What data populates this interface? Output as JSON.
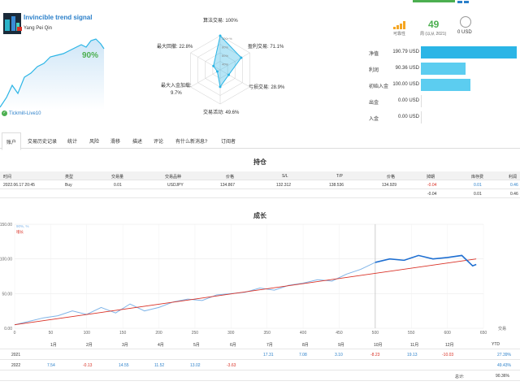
{
  "signal": {
    "title": "Invincible trend signal",
    "author": "Yang Pei Qin",
    "growth": "90%",
    "server": "Tickmill-Live10"
  },
  "radar": {
    "labels": [
      "算法交易: 100%",
      "盈利交易: 71.1%",
      "亏损交易: 28.9%",
      "交易活动: 49.6%",
      "最大入金加载:\n9.7%",
      "最大回撤: 22.8%"
    ],
    "values": [
      100,
      71.1,
      28.9,
      49.6,
      9.7,
      22.8
    ],
    "rings": [
      "100+%",
      "80%",
      "60%",
      "40%"
    ]
  },
  "stats": {
    "reliability_label": "可靠性",
    "weeks": "49",
    "weeks_label": "周 (以从 2021)",
    "currency_label": "0 USD"
  },
  "metrics": [
    {
      "label": "净值",
      "value": "190.79 USD",
      "fraction": 1.0
    },
    {
      "label": "利润",
      "value": "90.36 USD",
      "fraction": 0.47
    },
    {
      "label": "初始入金",
      "value": "100.00 USD",
      "fraction": 0.52
    },
    {
      "label": "出金",
      "value": "0.00 USD",
      "fraction": 0
    },
    {
      "label": "入金",
      "value": "0.00 USD",
      "fraction": 0
    }
  ],
  "tabs": [
    "账户",
    "交易历史记录",
    "统计",
    "风险",
    "滑移",
    "描述",
    "评论",
    "有什么新消息?",
    "订阅者"
  ],
  "holdings": {
    "title": "持仓",
    "headers": [
      "时间",
      "类型",
      "交易量",
      "交易品种",
      "价格",
      "S/L",
      "T/P",
      "价格",
      "掉期",
      "库存费",
      "利润"
    ],
    "row": [
      "2022.06.17 20:45",
      "Buy",
      "0.01",
      "USDJPY",
      "134.867",
      "132.312",
      "138.536",
      "134.929",
      "-0.04",
      "0.01",
      "0.46"
    ],
    "totals": [
      "-0.04",
      "0.01",
      "0.46"
    ]
  },
  "chart_data": {
    "type": "line",
    "title": "成长",
    "legend": [
      "90%, %",
      "增长"
    ],
    "x_ticks": [
      0,
      50,
      100,
      150,
      200,
      250,
      300,
      350,
      400,
      450,
      500,
      550,
      600,
      650
    ],
    "y_ticks": [
      0,
      50,
      100,
      150
    ],
    "x_axis_label": "交易",
    "months": [
      "1月",
      "2月",
      "3月",
      "4月",
      "5月",
      "6月",
      "7月",
      "8月",
      "9月",
      "10月",
      "11月",
      "12月",
      "YTD"
    ],
    "xlim": [
      0,
      650
    ],
    "ylim": [
      0,
      150
    ],
    "series": [
      {
        "name": "90%, %",
        "x": [
          0,
          20,
          40,
          60,
          80,
          100,
          120,
          140,
          160,
          180,
          200,
          220,
          240,
          260,
          280,
          300,
          320,
          340,
          360,
          380,
          400,
          420,
          440,
          460,
          480,
          500,
          520,
          540,
          560,
          580,
          600,
          620,
          635,
          640
        ],
        "y": [
          5,
          10,
          15,
          18,
          25,
          20,
          30,
          22,
          35,
          25,
          30,
          38,
          42,
          40,
          48,
          50,
          52,
          58,
          55,
          62,
          65,
          70,
          68,
          78,
          85,
          95,
          100,
          98,
          105,
          100,
          102,
          105,
          90,
          92
        ]
      },
      {
        "name": "增长",
        "x": [
          0,
          640
        ],
        "y": [
          5,
          100
        ]
      }
    ]
  },
  "yearly": [
    {
      "year": "2021",
      "months": [
        "",
        "",
        "",
        "",
        "",
        "",
        "17.31",
        "7.08",
        "3.10",
        "-8.23",
        "19.13",
        "-10.03"
      ],
      "ytd": "27.39%"
    },
    {
      "year": "2022",
      "months": [
        "7.54",
        "-0.13",
        "14.55",
        "11.52",
        "13.02",
        "-3.63",
        "",
        "",
        "",
        "",
        "",
        ""
      ],
      "ytd": "49.43%"
    }
  ],
  "total": {
    "label": "总计:",
    "value": "90.36%"
  }
}
